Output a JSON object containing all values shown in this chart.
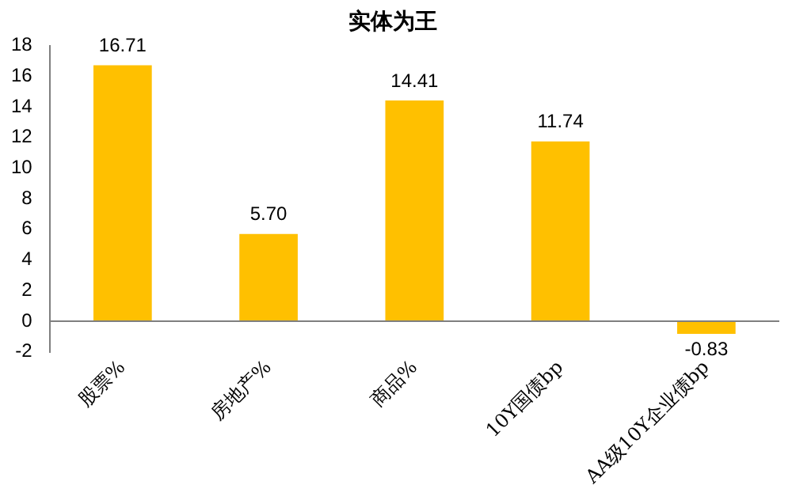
{
  "chart_data": {
    "type": "bar",
    "title": "实体为王",
    "categories": [
      "股票%",
      "房地产%",
      "商品%",
      "10Y国债bp",
      "AA级10Y企业债bp"
    ],
    "values": [
      16.71,
      5.7,
      14.41,
      11.74,
      -0.83
    ],
    "value_labels": [
      "16.71",
      "5.70",
      "14.41",
      "11.74",
      "-0.83"
    ],
    "color": "#ffc000",
    "ylim": [
      -2,
      18
    ],
    "yticks": [
      -2,
      0,
      2,
      4,
      6,
      8,
      10,
      12,
      14,
      16,
      18
    ],
    "grid": false,
    "legend": false
  }
}
